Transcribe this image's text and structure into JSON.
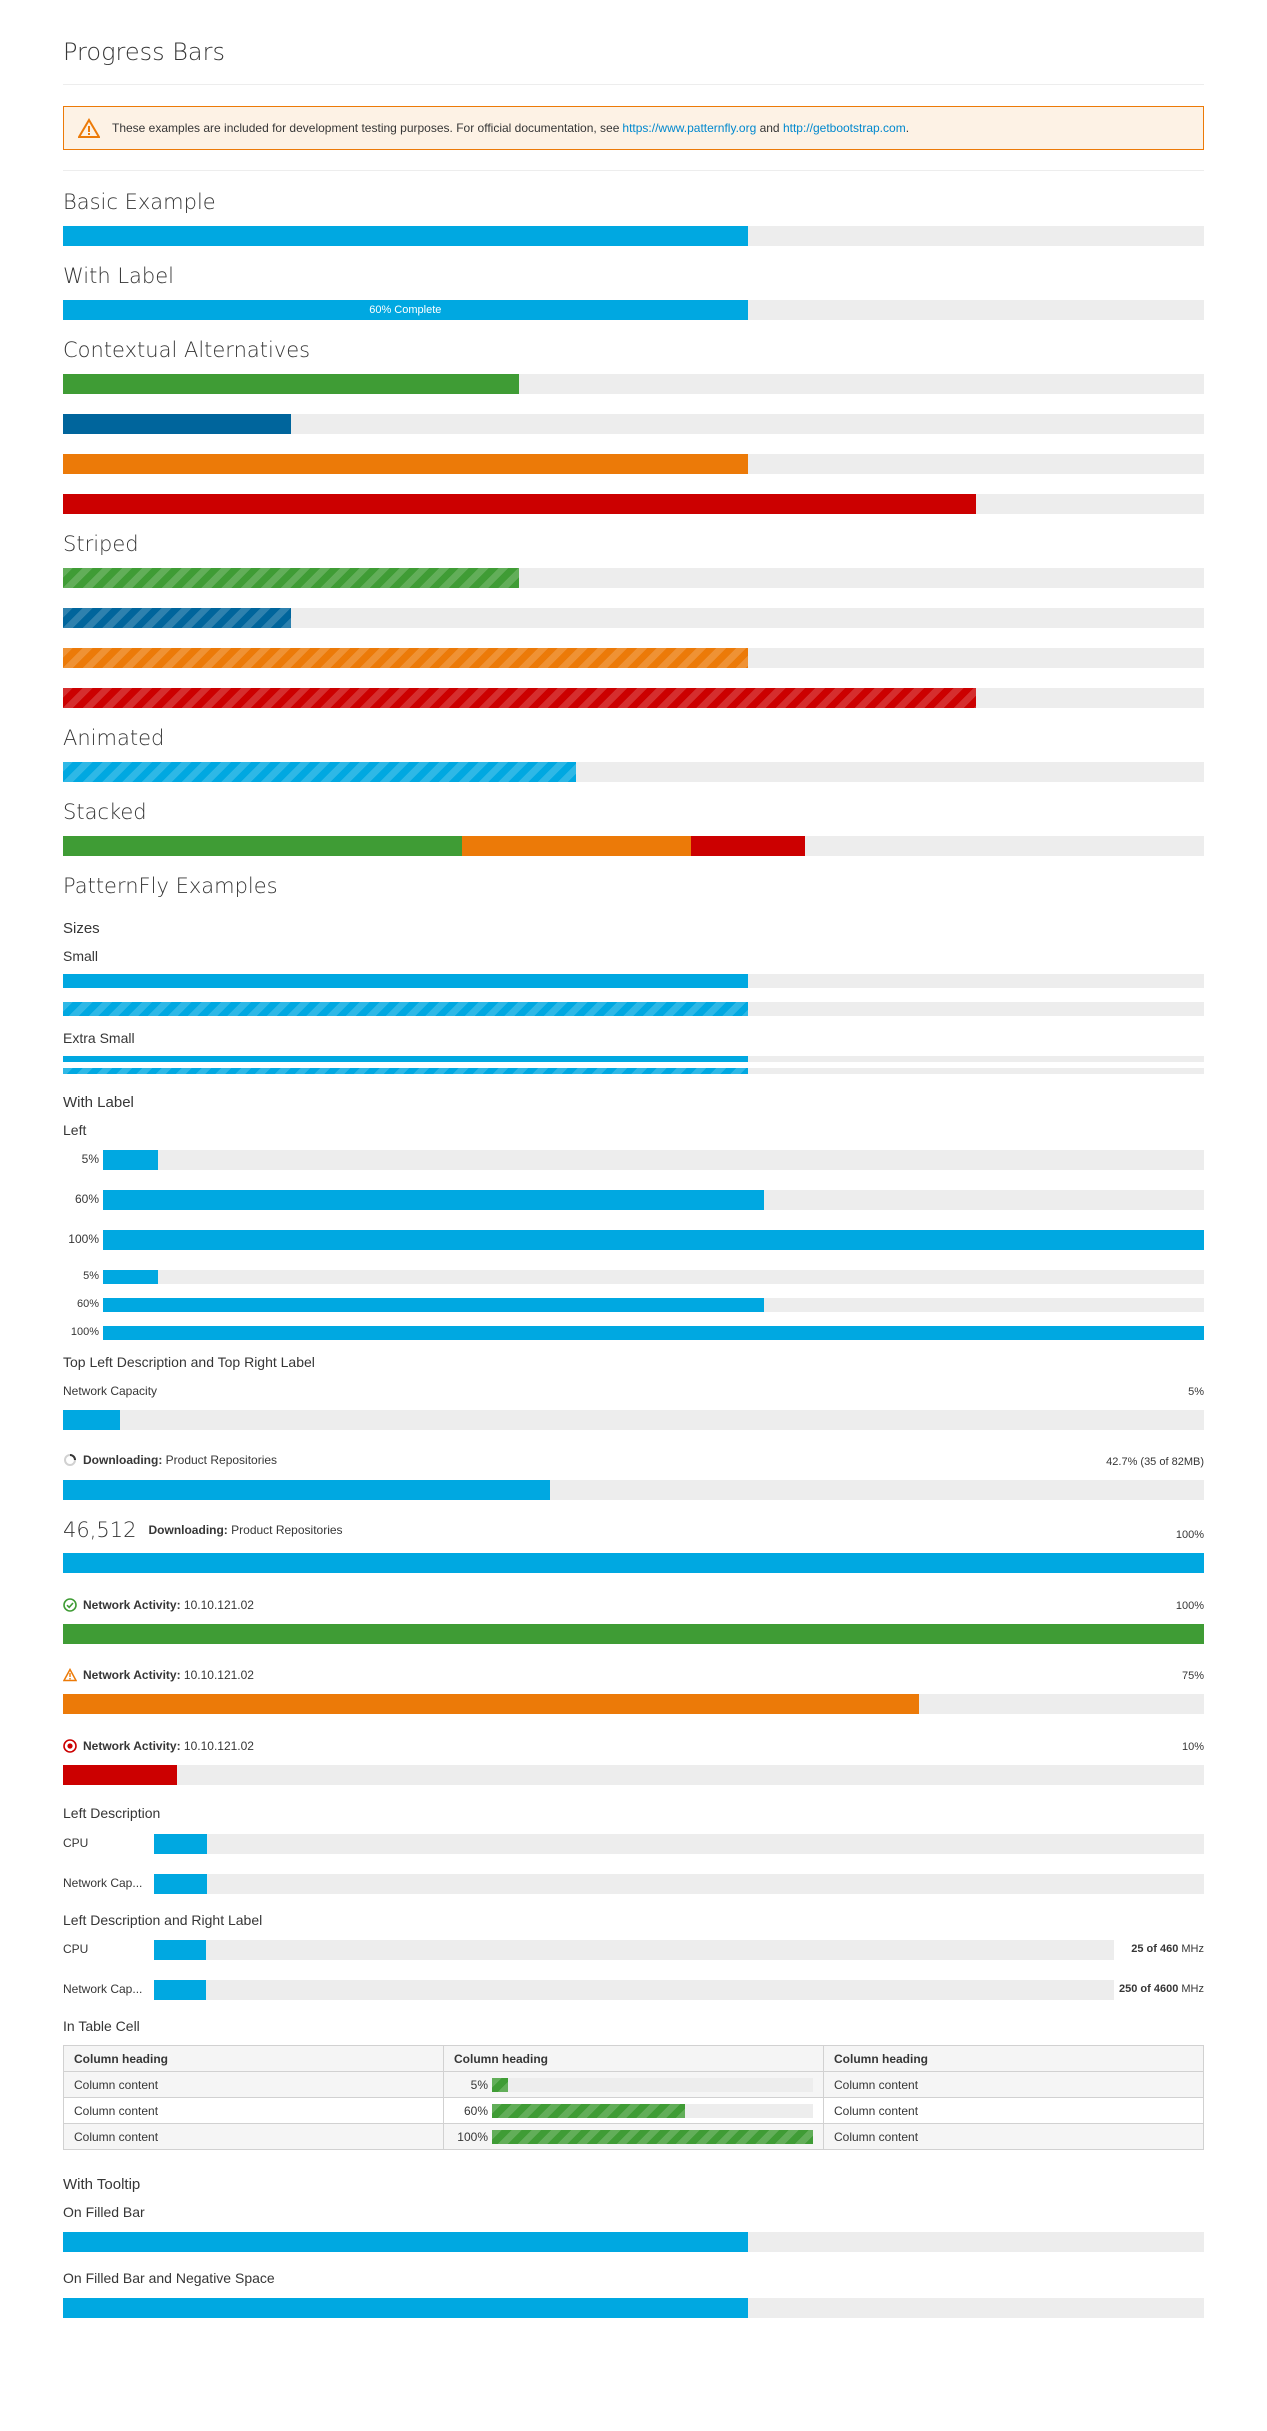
{
  "title": "Progress Bars",
  "alert": {
    "text": "These examples are included for development testing purposes. For official documentation, see ",
    "link1": "https://www.patternfly.org",
    "and": " and ",
    "link2": "http://getbootstrap.com",
    "end": "."
  },
  "sections": {
    "basic": "Basic Example",
    "with_label": "With Label",
    "contextual": "Contextual Alternatives",
    "striped": "Striped",
    "animated": "Animated",
    "stacked": "Stacked",
    "patternfly": "PatternFly Examples"
  },
  "bars": {
    "basic": 0.6,
    "with_label": 0.6,
    "with_label_text": "60% Complete",
    "contextual": [
      0.4,
      0.2,
      0.6,
      0.8
    ],
    "striped": [
      0.4,
      0.2,
      0.6,
      0.8
    ],
    "animated": 0.45,
    "stacked": [
      0.35,
      0.2,
      0.1
    ]
  },
  "pf": {
    "sizes": "Sizes",
    "small": "Small",
    "extra_small": "Extra Small",
    "with_label": "With Label",
    "left": "Left",
    "left_values": [
      "5%",
      "60%",
      "100%"
    ],
    "left_small_values": [
      "5%",
      "60%",
      "100%"
    ],
    "top_left_desc": "Top Left Description and Top Right Label",
    "tl": {
      "network_capacity": "Network Capacity",
      "nc_value": "5%",
      "downloading_bold": "Downloading:",
      "downloading_text": " Product Repositories",
      "downloading_value": "42.7% (35 of 82MB)",
      "bignum": "46,512",
      "downloading2_bold": "Downloading:",
      "downloading2_text": " Product Repositories",
      "downloading2_value": "100%",
      "na_bold": "Network Activity:",
      "na_ip": " 10.10.121.02",
      "na_ok_value": "100%",
      "na_warn_value": "75%",
      "na_err_value": "10%"
    },
    "left_description": "Left Description",
    "ld": {
      "cpu": "CPU",
      "network": "Network Cap..."
    },
    "left_desc_right": "Left Description and Right Label",
    "ldr": {
      "cpu": "CPU",
      "cpu_bold": "25 of 460",
      "cpu_unit": " MHz",
      "network": "Network Cap...",
      "net_bold": "250 of 4600",
      "net_unit": " MHz"
    },
    "in_table_cell": "In Table Cell",
    "table": {
      "headers": [
        "Column heading",
        "Column heading",
        "Column heading"
      ],
      "rows": [
        [
          "Column content",
          "5%",
          "Column content"
        ],
        [
          "Column content",
          "60%",
          "Column content"
        ],
        [
          "Column content",
          "100%",
          "Column content"
        ]
      ]
    },
    "with_tooltip": "With Tooltip",
    "on_filled": "On Filled Bar",
    "on_filled_neg": "On Filled Bar and Negative Space"
  }
}
